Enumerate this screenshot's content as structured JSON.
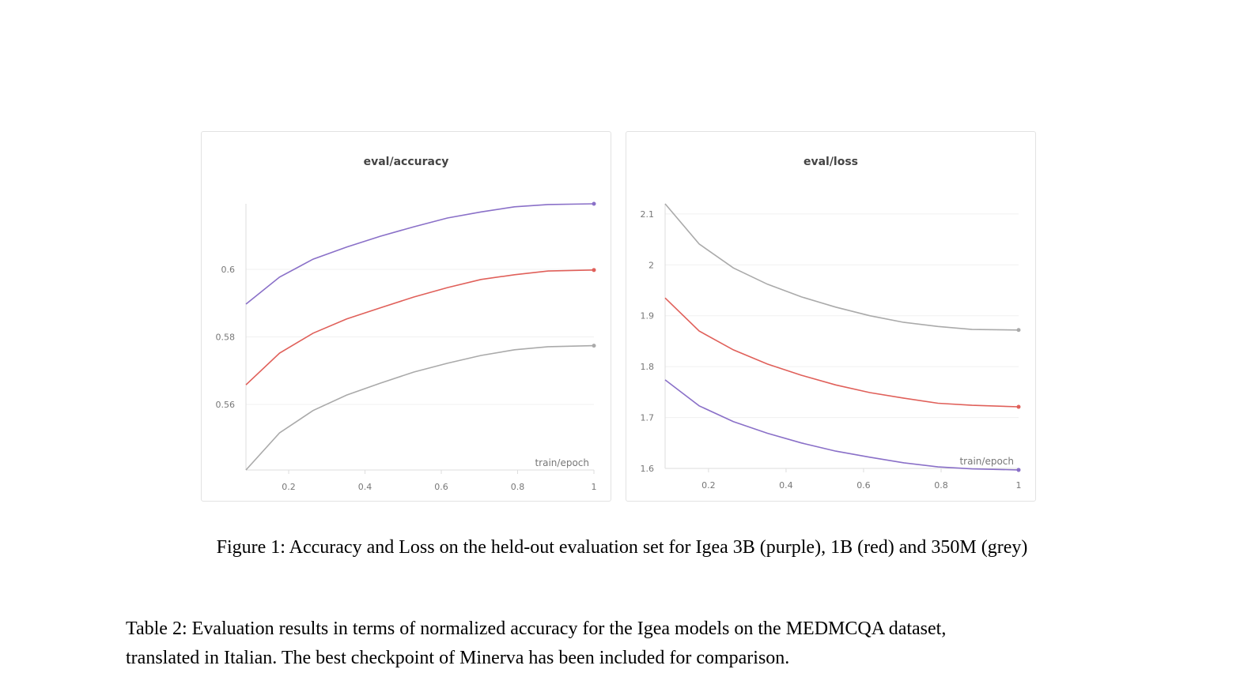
{
  "figure_caption": "Figure 1: Accuracy and Loss on the held-out evaluation set for Igea 3B (purple), 1B (red) and 350M (grey)",
  "table_caption_line1": "Table 2: Evaluation results in terms of normalized accuracy for the Igea models on the MEDMCQA dataset,",
  "table_caption_line2": "translated in Italian. The best checkpoint of Minerva has been included for comparison.",
  "colors": {
    "purple": "#8a70c8",
    "red": "#e0605a",
    "grey": "#aaaaaa"
  },
  "chart_data": [
    {
      "type": "line",
      "title": "eval/accuracy",
      "xlabel": "train/epoch",
      "ylabel": "",
      "xlim": [
        0.088,
        1
      ],
      "ylim": [
        0.5406,
        0.6194
      ],
      "xticks": [
        "0.2",
        "0.4",
        "0.6",
        "0.8",
        "1"
      ],
      "xtick_values": [
        0.2,
        0.4,
        0.6,
        0.8,
        1
      ],
      "yticks": [
        "0.56",
        "0.58",
        "0.6"
      ],
      "ytick_values": [
        0.56,
        0.58,
        0.6
      ],
      "grid": true,
      "x": [
        0.088,
        0.176,
        0.264,
        0.352,
        0.44,
        0.528,
        0.616,
        0.704,
        0.792,
        0.88,
        1
      ],
      "series": [
        {
          "color": "#8a70c8",
          "values": [
            0.5897,
            0.5977,
            0.603,
            0.6066,
            0.6098,
            0.6126,
            0.6152,
            0.617,
            0.6185,
            0.6192,
            0.6194
          ]
        },
        {
          "color": "#e0605a",
          "values": [
            0.5658,
            0.5752,
            0.5811,
            0.5853,
            0.5886,
            0.5918,
            0.5946,
            0.597,
            0.5984,
            0.5995,
            0.5998
          ]
        },
        {
          "color": "#aaaaaa",
          "values": [
            0.5406,
            0.5516,
            0.5582,
            0.5628,
            0.5663,
            0.5696,
            0.5722,
            0.5745,
            0.5762,
            0.5771,
            0.5774
          ]
        }
      ]
    },
    {
      "type": "line",
      "title": "eval/loss",
      "xlabel": "train/epoch",
      "ylabel": "",
      "xlim": [
        0.088,
        1
      ],
      "ylim": [
        1.6,
        2.12
      ],
      "xticks": [
        "0.2",
        "0.4",
        "0.6",
        "0.8",
        "1"
      ],
      "xtick_values": [
        0.2,
        0.4,
        0.6,
        0.8,
        1
      ],
      "yticks": [
        "1.6",
        "1.7",
        "1.8",
        "1.9",
        "2",
        "2.1"
      ],
      "ytick_values": [
        1.6,
        1.7,
        1.8,
        1.9,
        2,
        2.1
      ],
      "grid": true,
      "x": [
        0.088,
        0.176,
        0.264,
        0.352,
        0.44,
        0.528,
        0.616,
        0.704,
        0.792,
        0.88,
        1
      ],
      "series": [
        {
          "color": "#aaaaaa",
          "values": [
            2.12,
            2.041,
            1.994,
            1.962,
            1.937,
            1.917,
            1.9,
            1.887,
            1.879,
            1.873,
            1.872
          ]
        },
        {
          "color": "#e0605a",
          "values": [
            1.935,
            1.87,
            1.833,
            1.805,
            1.783,
            1.764,
            1.749,
            1.738,
            1.728,
            1.724,
            1.721
          ]
        },
        {
          "color": "#8a70c8",
          "values": [
            1.774,
            1.723,
            1.692,
            1.669,
            1.65,
            1.634,
            1.622,
            1.611,
            1.603,
            1.599,
            1.597
          ]
        }
      ]
    }
  ]
}
